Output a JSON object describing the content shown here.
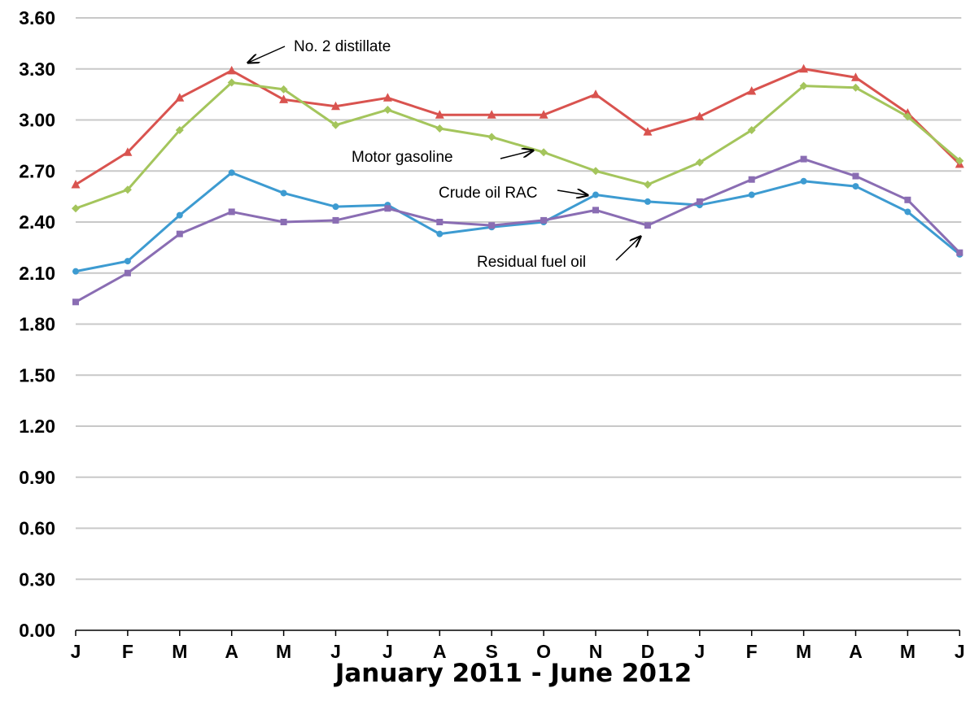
{
  "chart_data": {
    "type": "line",
    "title": "",
    "xlabel": "January 2011 - June 2012",
    "ylabel": "",
    "categories": [
      "J",
      "F",
      "M",
      "A",
      "M",
      "J",
      "J",
      "A",
      "S",
      "O",
      "N",
      "D",
      "J",
      "F",
      "M",
      "A",
      "M",
      "J"
    ],
    "ylim": [
      0,
      3.6
    ],
    "yticks": [
      "0.00",
      "0.30",
      "0.60",
      "0.90",
      "1.20",
      "1.50",
      "1.80",
      "2.10",
      "2.40",
      "2.70",
      "3.00",
      "3.30",
      "3.60"
    ],
    "grid": true,
    "series": [
      {
        "name": "No. 2 distillate",
        "color": "#d9534f",
        "marker": "triangle",
        "values": [
          2.62,
          2.81,
          3.13,
          3.29,
          3.12,
          3.08,
          3.13,
          3.03,
          3.03,
          3.03,
          3.15,
          2.93,
          3.02,
          3.17,
          3.3,
          3.25,
          3.04,
          2.74
        ]
      },
      {
        "name": "Motor gasoline",
        "color": "#a4c55c",
        "marker": "diamond",
        "values": [
          2.48,
          2.59,
          2.94,
          3.22,
          3.18,
          2.97,
          3.06,
          2.95,
          2.9,
          2.81,
          2.7,
          2.62,
          2.75,
          2.94,
          3.2,
          3.19,
          3.02,
          2.76
        ]
      },
      {
        "name": "Crude oil RAC",
        "color": "#3d9bd1",
        "marker": "circle",
        "values": [
          2.11,
          2.17,
          2.44,
          2.69,
          2.57,
          2.49,
          2.5,
          2.33,
          2.37,
          2.4,
          2.56,
          2.52,
          2.5,
          2.56,
          2.64,
          2.61,
          2.46,
          2.21
        ]
      },
      {
        "name": "Residual fuel oil",
        "color": "#8a6db3",
        "marker": "square",
        "values": [
          1.93,
          2.1,
          2.33,
          2.46,
          2.4,
          2.41,
          2.48,
          2.4,
          2.38,
          2.41,
          2.47,
          2.38,
          2.52,
          2.65,
          2.77,
          2.67,
          2.53,
          2.22
        ]
      }
    ],
    "annotations": [
      {
        "text": "No. 2 distillate",
        "series": "No. 2 distillate"
      },
      {
        "text": "Motor gasoline",
        "series": "Motor gasoline"
      },
      {
        "text": "Crude oil RAC",
        "series": "Crude oil RAC"
      },
      {
        "text": "Residual fuel oil",
        "series": "Residual fuel oil"
      }
    ]
  }
}
